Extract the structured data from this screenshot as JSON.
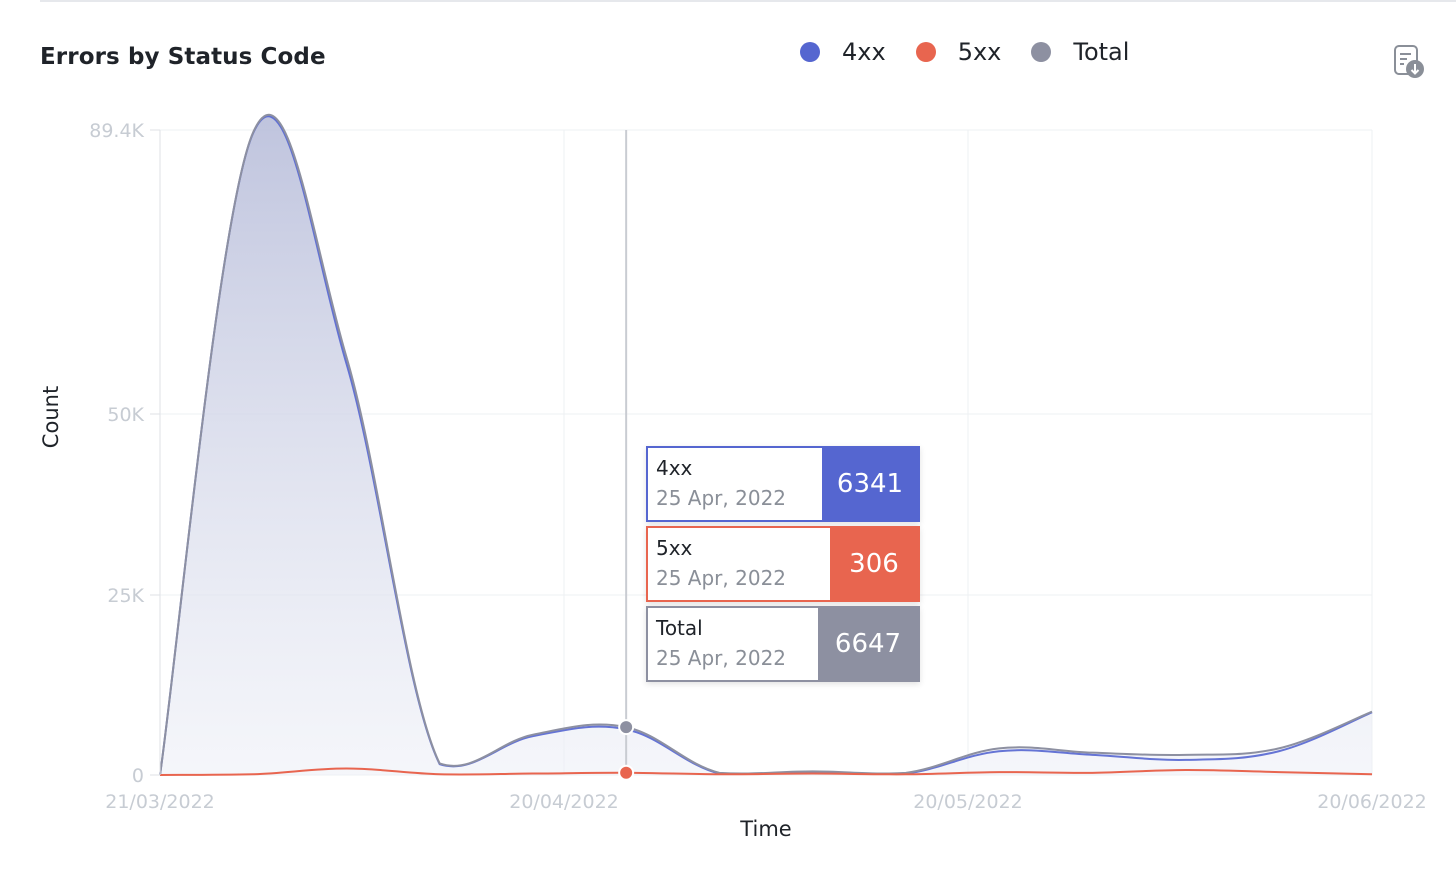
{
  "title": "Errors by Status Code",
  "legend": [
    {
      "label": "4xx",
      "color": "#5566d0"
    },
    {
      "label": "5xx",
      "color": "#e8654f"
    },
    {
      "label": "Total",
      "color": "#8d90a1"
    }
  ],
  "export_icon": "export-report-icon",
  "tooltip": {
    "rows": [
      {
        "name": "4xx",
        "date": "25 Apr, 2022",
        "value": "6341",
        "color": "#5566d0"
      },
      {
        "name": "5xx",
        "date": "25 Apr, 2022",
        "value": "306",
        "color": "#e8654f"
      },
      {
        "name": "Total",
        "date": "25 Apr, 2022",
        "value": "6647",
        "color": "#8d90a1"
      }
    ]
  },
  "chart_data": {
    "type": "area",
    "xlabel": "Time",
    "ylabel": "Count",
    "x_ticks": [
      "21/03/2022",
      "20/04/2022",
      "20/05/2022",
      "20/06/2022"
    ],
    "y_ticks": [
      "0",
      "25K",
      "50K",
      "89.4K"
    ],
    "y_tick_values": [
      0,
      25000,
      50000,
      89400
    ],
    "ylim": [
      0,
      89400
    ],
    "x": [
      "21/03/2022",
      "28/03/2022",
      "04/04/2022",
      "11/04/2022",
      "18/04/2022",
      "25/04/2022",
      "02/05/2022",
      "09/05/2022",
      "16/05/2022",
      "23/05/2022",
      "30/05/2022",
      "06/06/2022",
      "13/06/2022",
      "20/06/2022"
    ],
    "series": [
      {
        "name": "4xx",
        "color": "#5566d0",
        "values": [
          0,
          89000,
          57000,
          1500,
          5400,
          6341,
          200,
          300,
          200,
          3300,
          2800,
          2100,
          3300,
          8700
        ]
      },
      {
        "name": "5xx",
        "color": "#e8654f",
        "values": [
          0,
          100,
          900,
          100,
          200,
          306,
          100,
          200,
          100,
          400,
          300,
          700,
          400,
          100
        ]
      },
      {
        "name": "Total",
        "color": "#8d90a1",
        "values": [
          0,
          89100,
          57900,
          1600,
          5600,
          6647,
          300,
          500,
          300,
          3700,
          3100,
          2800,
          3700,
          8800
        ]
      }
    ],
    "hover": {
      "x": "25/04/2022",
      "index": 5
    },
    "grid": true
  }
}
